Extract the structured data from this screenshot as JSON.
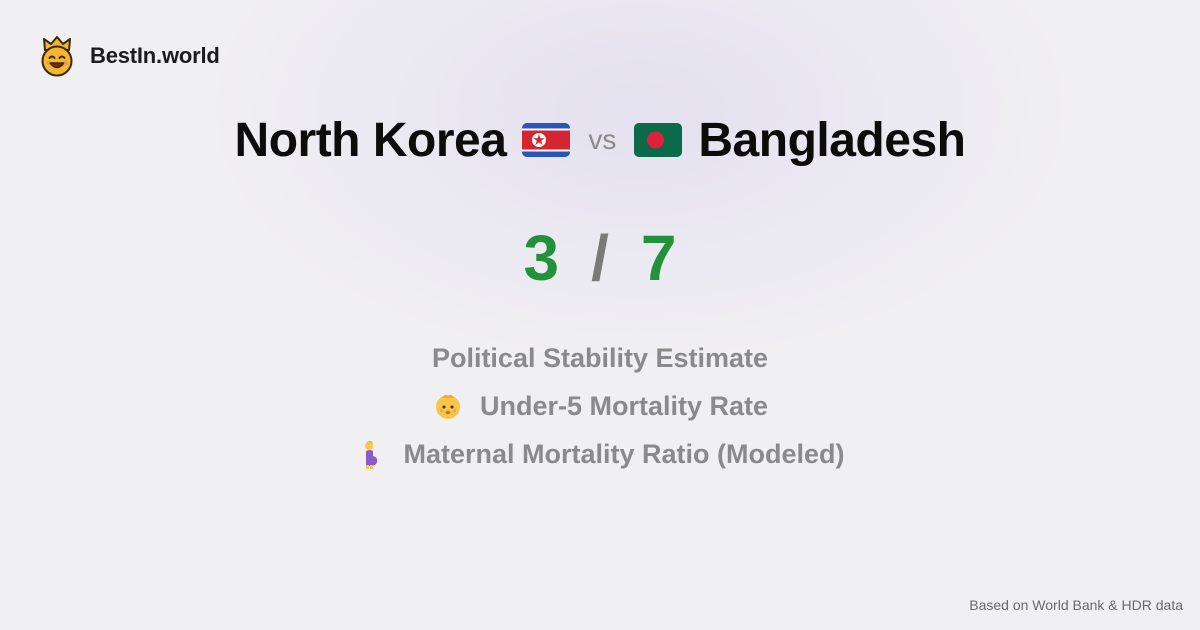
{
  "brand": {
    "name": "BestIn.world",
    "logo_icon": "crown-smiley-icon"
  },
  "comparison": {
    "left_country": "North Korea",
    "left_flag": "north-korea-flag-icon",
    "vs_label": "vs",
    "right_country": "Bangladesh",
    "right_flag": "bangladesh-flag-icon"
  },
  "score": {
    "left": "3",
    "separator": "/",
    "right": "7",
    "color": "#23913a"
  },
  "metrics": [
    {
      "label": "Political Stability Estimate",
      "icon": ""
    },
    {
      "label": "Under-5 Mortality Rate",
      "icon": "baby-icon"
    },
    {
      "label": "Maternal Mortality Ratio (Modeled)",
      "icon": "pregnant-woman-icon"
    }
  ],
  "footer": {
    "source": "Based on World Bank & HDR data"
  }
}
